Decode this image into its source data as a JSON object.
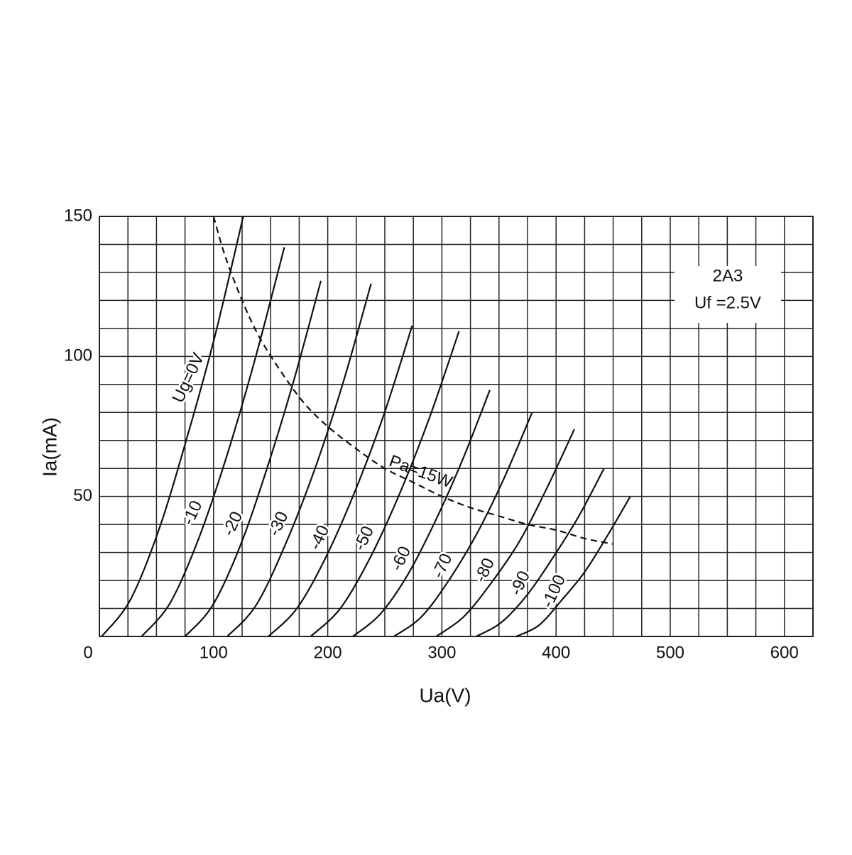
{
  "chart_data": {
    "type": "line",
    "xlabel": "Ua(V)",
    "ylabel": "Ia(mA)",
    "annotations": [
      "2A3",
      "Uf =2.5V"
    ],
    "xlim": [
      0,
      625
    ],
    "ylim": [
      0,
      150
    ],
    "xticks": [
      0,
      100,
      200,
      300,
      400,
      500,
      600
    ],
    "yticks": [
      50,
      100,
      150
    ],
    "xminor": [
      25,
      50,
      75,
      125,
      150,
      175,
      225,
      250,
      275,
      325,
      350,
      375,
      425,
      450,
      475,
      525,
      550,
      575,
      625
    ],
    "yminor": [
      10,
      20,
      30,
      40,
      60,
      70,
      80,
      90,
      110,
      120,
      130,
      140
    ],
    "grid": true,
    "color": "#111111",
    "series": [
      {
        "name": "Ug=0V",
        "x": [
          2,
          27,
          52,
          76,
          101,
          126
        ],
        "values": [
          0,
          13,
          38,
          70,
          107,
          150
        ]
      },
      {
        "name": "-10",
        "x": [
          37,
          62,
          87,
          112,
          137,
          162
        ],
        "values": [
          0,
          12,
          35,
          65,
          100,
          139
        ]
      },
      {
        "name": "-20",
        "x": [
          75,
          99,
          123,
          146,
          170,
          194
        ],
        "values": [
          0,
          11,
          32,
          59,
          91,
          127
        ]
      },
      {
        "name": "-30",
        "x": [
          112,
          137,
          162,
          188,
          213,
          238
        ],
        "values": [
          0,
          11,
          32,
          59,
          90,
          126
        ]
      },
      {
        "name": "-40",
        "x": [
          148,
          173,
          198,
          224,
          249,
          274
        ],
        "values": [
          0,
          10,
          28,
          52,
          79,
          111
        ]
      },
      {
        "name": "-50",
        "x": [
          185,
          211,
          237,
          263,
          289,
          315
        ],
        "values": [
          0,
          10,
          28,
          51,
          78,
          109
        ]
      },
      {
        "name": "-60",
        "x": [
          222,
          246,
          270,
          294,
          318,
          342
        ],
        "values": [
          0,
          8,
          22,
          41,
          63,
          88
        ]
      },
      {
        "name": "-70",
        "x": [
          258,
          282,
          306,
          331,
          355,
          379
        ],
        "values": [
          0,
          7,
          20,
          37,
          57,
          80
        ]
      },
      {
        "name": "-80",
        "x": [
          295,
          319,
          343,
          368,
          392,
          416
        ],
        "values": [
          0,
          7,
          19,
          34,
          53,
          74
        ]
      },
      {
        "name": "-90",
        "x": [
          330,
          352,
          375,
          397,
          420,
          442
        ],
        "values": [
          0,
          5,
          15,
          28,
          43,
          60
        ]
      },
      {
        "name": "-100",
        "x": [
          365,
          385,
          405,
          425,
          445,
          465
        ],
        "values": [
          0,
          4,
          13,
          23,
          36,
          50
        ]
      },
      {
        "name": "Pa=15W",
        "dashed": true,
        "x": [
          100,
          110,
          125,
          140,
          160,
          180,
          200,
          225,
          250,
          275,
          300,
          325,
          350,
          375,
          400,
          425,
          450
        ],
        "values": [
          150,
          136,
          120,
          107,
          94,
          83,
          75,
          67,
          60,
          55,
          50,
          46,
          43,
          40,
          38,
          35,
          33
        ]
      }
    ]
  }
}
